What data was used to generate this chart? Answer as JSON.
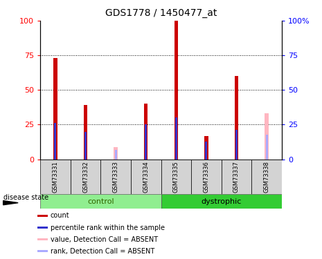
{
  "title": "GDS1778 / 1450477_at",
  "samples": [
    "GSM73331",
    "GSM73332",
    "GSM73333",
    "GSM73334",
    "GSM73335",
    "GSM73336",
    "GSM73337",
    "GSM73338"
  ],
  "count_values": [
    73,
    39,
    null,
    40,
    100,
    17,
    60,
    null
  ],
  "rank_values": [
    26,
    20,
    null,
    25,
    30,
    13,
    21,
    null
  ],
  "absent_count": [
    null,
    null,
    9,
    null,
    null,
    null,
    null,
    33
  ],
  "absent_rank": [
    null,
    null,
    7,
    null,
    null,
    null,
    null,
    18
  ],
  "groups": [
    "control",
    "control",
    "control",
    "control",
    "dystrophic",
    "dystrophic",
    "dystrophic",
    "dystrophic"
  ],
  "control_color": "#90EE90",
  "dystrophic_color": "#33CC33",
  "bar_red": "#CC0000",
  "bar_blue": "#3333CC",
  "bar_pink": "#FFB6C1",
  "bar_lightblue": "#AAAAFF",
  "ylim": [
    0,
    100
  ],
  "yticks": [
    0,
    25,
    50,
    75,
    100
  ],
  "right_ytick_labels": [
    "0",
    "25",
    "50",
    "75",
    "100%"
  ]
}
